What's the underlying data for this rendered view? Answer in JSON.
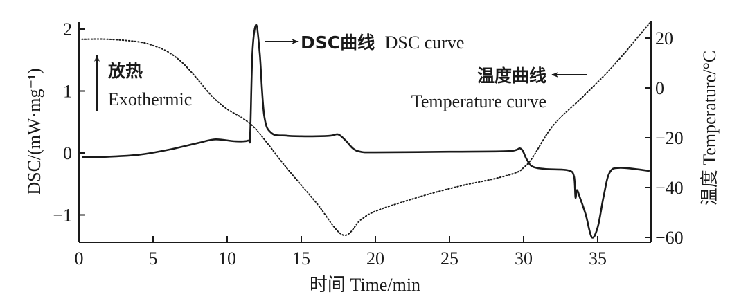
{
  "chart_data": {
    "type": "line",
    "title": "",
    "xlabel": "时间 Time/min",
    "ylabel": "DSC/(mW·mg⁻¹)",
    "ylabel_right": "温度 Temperature/°C",
    "xlim": [
      0,
      38.6
    ],
    "ylim": [
      -1.45,
      2.1
    ],
    "ylim_right": [
      -60,
      26
    ],
    "x_ticks": [
      "0",
      "5",
      "10",
      "15",
      "20",
      "25",
      "30",
      "35"
    ],
    "y_ticks": [
      "−1",
      "0",
      "1",
      "2"
    ],
    "y_ticks_right": [
      "−60",
      "−40",
      "−20",
      "0",
      "20"
    ],
    "grid": false,
    "legend": "none (inline annotations)",
    "annotations": {
      "exo_cn": "放热",
      "exo_en": "Exothermic",
      "dsc_cn": "DSC曲线",
      "dsc_en": "DSC curve",
      "temp_cn": "温度曲线",
      "temp_en": "Temperature curve"
    },
    "series": [
      {
        "name": "DSC curve",
        "axis": "left",
        "style": "solid",
        "x": [
          0.2,
          2,
          4,
          6,
          8,
          9.2,
          10.5,
          11.4,
          11.55,
          11.7,
          11.95,
          12.2,
          12.5,
          13,
          14,
          15,
          16,
          17,
          17.5,
          18,
          18.5,
          19,
          20,
          25,
          29,
          29.8,
          30.2,
          30.6,
          31.5,
          33,
          33.4,
          33.5,
          33.6,
          33.8,
          34.2,
          34.6,
          35,
          35.4,
          35.8,
          36.5,
          38.5
        ],
        "values": [
          -0.07,
          -0.06,
          -0.03,
          0.05,
          0.16,
          0.22,
          0.19,
          0.2,
          0.3,
          1.6,
          2.07,
          1.6,
          0.6,
          0.32,
          0.28,
          0.27,
          0.27,
          0.28,
          0.3,
          0.2,
          0.07,
          0.02,
          0.01,
          0.02,
          0.03,
          0.07,
          -0.1,
          -0.22,
          -0.26,
          -0.28,
          -0.38,
          -0.72,
          -0.6,
          -0.72,
          -1.0,
          -1.36,
          -1.2,
          -0.7,
          -0.32,
          -0.24,
          -0.29
        ]
      },
      {
        "name": "Temperature curve",
        "axis": "right",
        "style": "dotted",
        "x": [
          0.2,
          2,
          4,
          5,
          6,
          7,
          8,
          9,
          10,
          11,
          12,
          14,
          16,
          17.8,
          19,
          20,
          22,
          24,
          26,
          28,
          29.5,
          30,
          30.6,
          32,
          34,
          36,
          38.5
        ],
        "values": [
          19.5,
          19.5,
          18.5,
          17,
          14.5,
          10,
          3.5,
          -3.5,
          -8.5,
          -12,
          -17,
          -32,
          -46,
          -59,
          -53,
          -49.5,
          -45.5,
          -42,
          -39,
          -36.5,
          -34,
          -32,
          -28,
          -15,
          -3.5,
          8.5,
          26
        ]
      }
    ]
  }
}
